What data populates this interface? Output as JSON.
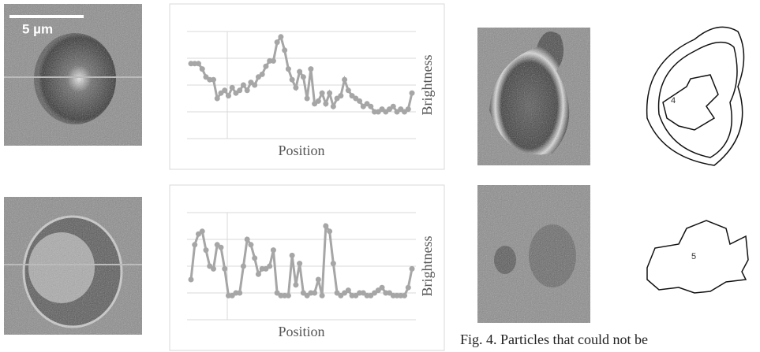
{
  "scale_bar_label": "5 µm",
  "caption": "Fig. 4. Particles that could not be",
  "contour_labels": [
    "4",
    "5"
  ],
  "chart_data": [
    {
      "type": "line",
      "x_label": "Position",
      "y_label": "Brightness",
      "color": "#a6a6a6",
      "ylim": [
        0,
        4
      ],
      "grid": [
        1,
        2,
        3
      ],
      "values": [
        2.8,
        2.8,
        2.8,
        2.6,
        2.3,
        2.2,
        2.2,
        1.5,
        1.7,
        1.8,
        1.6,
        1.9,
        1.7,
        1.8,
        2.0,
        1.8,
        2.1,
        2.0,
        2.3,
        2.4,
        2.7,
        2.9,
        2.9,
        3.6,
        3.8,
        3.3,
        2.6,
        2.2,
        1.9,
        2.5,
        2.3,
        1.5,
        2.6,
        1.3,
        1.4,
        1.7,
        1.3,
        1.7,
        1.2,
        1.5,
        1.6,
        2.2,
        1.8,
        1.6,
        1.5,
        1.4,
        1.2,
        1.3,
        1.2,
        1.0,
        1.0,
        1.1,
        1.0,
        1.1,
        1.2,
        1.0,
        1.1,
        1.0,
        1.1,
        1.7
      ]
    },
    {
      "type": "line",
      "x_label": "Position",
      "y_label": "Brightness",
      "color": "#a6a6a6",
      "ylim": [
        0,
        4
      ],
      "grid": [
        1,
        2,
        3
      ],
      "values": [
        1.5,
        2.8,
        3.2,
        3.3,
        2.6,
        2.0,
        1.9,
        2.8,
        2.7,
        1.9,
        0.9,
        0.9,
        1.0,
        1.0,
        2.0,
        3.0,
        2.8,
        2.3,
        1.7,
        1.9,
        1.9,
        2.0,
        2.6,
        1.0,
        0.9,
        0.9,
        0.9,
        2.4,
        1.3,
        2.1,
        1.0,
        0.9,
        1.0,
        1.0,
        1.5,
        0.9,
        3.5,
        3.3,
        2.1,
        1.0,
        0.9,
        1.0,
        1.1,
        0.9,
        0.9,
        1.0,
        1.0,
        0.9,
        0.9,
        1.0,
        1.1,
        1.2,
        1.0,
        1.0,
        0.9,
        0.9,
        0.9,
        0.9,
        1.2,
        1.9
      ]
    }
  ]
}
